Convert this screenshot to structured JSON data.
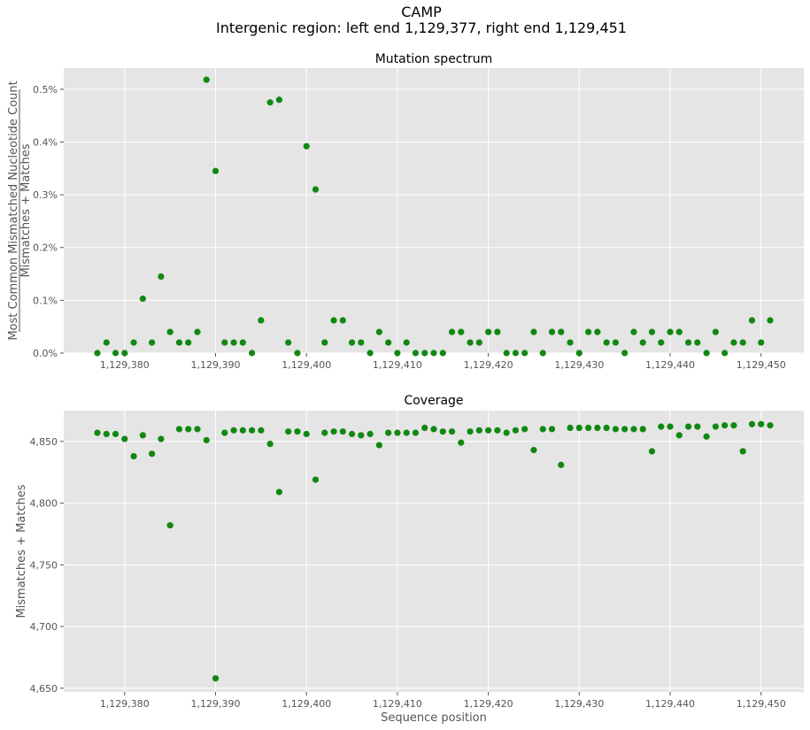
{
  "figure": {
    "title": "CAMP",
    "subtitle": "Intergenic region: left end 1,129,377, right end 1,129,451"
  },
  "colors": {
    "point": "#118811",
    "plot_bg": "#e5e5e5",
    "grid": "#ffffff",
    "tick_text": "#555555"
  },
  "chart_data": [
    {
      "type": "scatter",
      "title": "Mutation spectrum",
      "xlabel": "",
      "ylabel_numerator": "Most Common Mismatched Nucleotide Count",
      "ylabel_denominator": "Mismatches + Matches",
      "y_unit": "percent",
      "xlim": [
        1129373.3,
        1129454.7
      ],
      "ylim": [
        0,
        0.54
      ],
      "x_ticks": [
        1129380,
        1129390,
        1129400,
        1129410,
        1129420,
        1129430,
        1129440,
        1129450
      ],
      "x_tick_labels": [
        "1,129,380",
        "1,129,390",
        "1,129,400",
        "1,129,410",
        "1,129,420",
        "1,129,430",
        "1,129,440",
        "1,129,450"
      ],
      "y_ticks": [
        0,
        0.1,
        0.2,
        0.3,
        0.4,
        0.5
      ],
      "y_tick_labels": [
        "0.0%",
        "0.1%",
        "0.2%",
        "0.3%",
        "0.4%",
        "0.5%"
      ],
      "grid": true,
      "x": [
        1129377,
        1129378,
        1129379,
        1129380,
        1129381,
        1129382,
        1129383,
        1129384,
        1129385,
        1129386,
        1129387,
        1129388,
        1129389,
        1129390,
        1129391,
        1129392,
        1129393,
        1129394,
        1129395,
        1129396,
        1129397,
        1129398,
        1129399,
        1129400,
        1129401,
        1129402,
        1129403,
        1129404,
        1129405,
        1129406,
        1129407,
        1129408,
        1129409,
        1129410,
        1129411,
        1129412,
        1129413,
        1129414,
        1129415,
        1129416,
        1129417,
        1129418,
        1129419,
        1129420,
        1129421,
        1129422,
        1129423,
        1129424,
        1129425,
        1129426,
        1129427,
        1129428,
        1129429,
        1129430,
        1129431,
        1129432,
        1129433,
        1129434,
        1129435,
        1129436,
        1129437,
        1129438,
        1129439,
        1129440,
        1129441,
        1129442,
        1129443,
        1129444,
        1129445,
        1129446,
        1129447,
        1129448,
        1129449,
        1129450,
        1129451
      ],
      "y": [
        0,
        0.02,
        0,
        0,
        0.02,
        0.103,
        0.02,
        0.145,
        0.04,
        0.02,
        0.02,
        0.04,
        0.518,
        0.345,
        0.02,
        0.02,
        0.02,
        0,
        0.062,
        0.475,
        0.48,
        0.02,
        0,
        0.392,
        0.31,
        0.02,
        0.062,
        0.062,
        0.02,
        0.02,
        0,
        0.04,
        0.02,
        0,
        0.02,
        0,
        0,
        0,
        0,
        0.04,
        0.04,
        0.02,
        0.02,
        0.04,
        0.04,
        0,
        0,
        0,
        0.04,
        0,
        0.04,
        0.04,
        0.02,
        0,
        0.04,
        0.04,
        0.02,
        0.02,
        0,
        0.04,
        0.02,
        0.04,
        0.02,
        0.04,
        0.04,
        0.02,
        0.02,
        0,
        0.04,
        0,
        0.02,
        0.02,
        0.062,
        0.02,
        0.062
      ]
    },
    {
      "type": "scatter",
      "title": "Coverage",
      "xlabel": "Sequence position",
      "ylabel": "Mismatches + Matches",
      "xlim": [
        1129373.3,
        1129454.7
      ],
      "ylim": [
        4647,
        4875
      ],
      "x_ticks": [
        1129380,
        1129390,
        1129400,
        1129410,
        1129420,
        1129430,
        1129440,
        1129450
      ],
      "x_tick_labels": [
        "1,129,380",
        "1,129,390",
        "1,129,400",
        "1,129,410",
        "1,129,420",
        "1,129,430",
        "1,129,440",
        "1,129,450"
      ],
      "y_ticks": [
        4650,
        4700,
        4750,
        4800,
        4850
      ],
      "y_tick_labels": [
        "4,650",
        "4,700",
        "4,750",
        "4,800",
        "4,850"
      ],
      "grid": true,
      "x": [
        1129377,
        1129378,
        1129379,
        1129380,
        1129381,
        1129382,
        1129383,
        1129384,
        1129385,
        1129386,
        1129387,
        1129388,
        1129389,
        1129390,
        1129391,
        1129392,
        1129393,
        1129394,
        1129395,
        1129396,
        1129397,
        1129398,
        1129399,
        1129400,
        1129401,
        1129402,
        1129403,
        1129404,
        1129405,
        1129406,
        1129407,
        1129408,
        1129409,
        1129410,
        1129411,
        1129412,
        1129413,
        1129414,
        1129415,
        1129416,
        1129417,
        1129418,
        1129419,
        1129420,
        1129421,
        1129422,
        1129423,
        1129424,
        1129425,
        1129426,
        1129427,
        1129428,
        1129429,
        1129430,
        1129431,
        1129432,
        1129433,
        1129434,
        1129435,
        1129436,
        1129437,
        1129438,
        1129439,
        1129440,
        1129441,
        1129442,
        1129443,
        1129444,
        1129445,
        1129446,
        1129447,
        1129448,
        1129449,
        1129450,
        1129451
      ],
      "y": [
        4857,
        4856,
        4856,
        4852,
        4838,
        4855,
        4840,
        4852,
        4782,
        4860,
        4860,
        4860,
        4851,
        4658,
        4857,
        4859,
        4859,
        4859,
        4859,
        4848,
        4809,
        4858,
        4858,
        4856,
        4819,
        4857,
        4858,
        4858,
        4856,
        4855,
        4856,
        4847,
        4857,
        4857,
        4857,
        4857,
        4861,
        4860,
        4858,
        4858,
        4849,
        4858,
        4859,
        4859,
        4859,
        4857,
        4859,
        4860,
        4843,
        4860,
        4860,
        4831,
        4861,
        4861,
        4861,
        4861,
        4861,
        4860,
        4860,
        4860,
        4860,
        4842,
        4862,
        4862,
        4855,
        4862,
        4862,
        4854,
        4862,
        4863,
        4863,
        4842,
        4864,
        4864,
        4863
      ]
    }
  ]
}
